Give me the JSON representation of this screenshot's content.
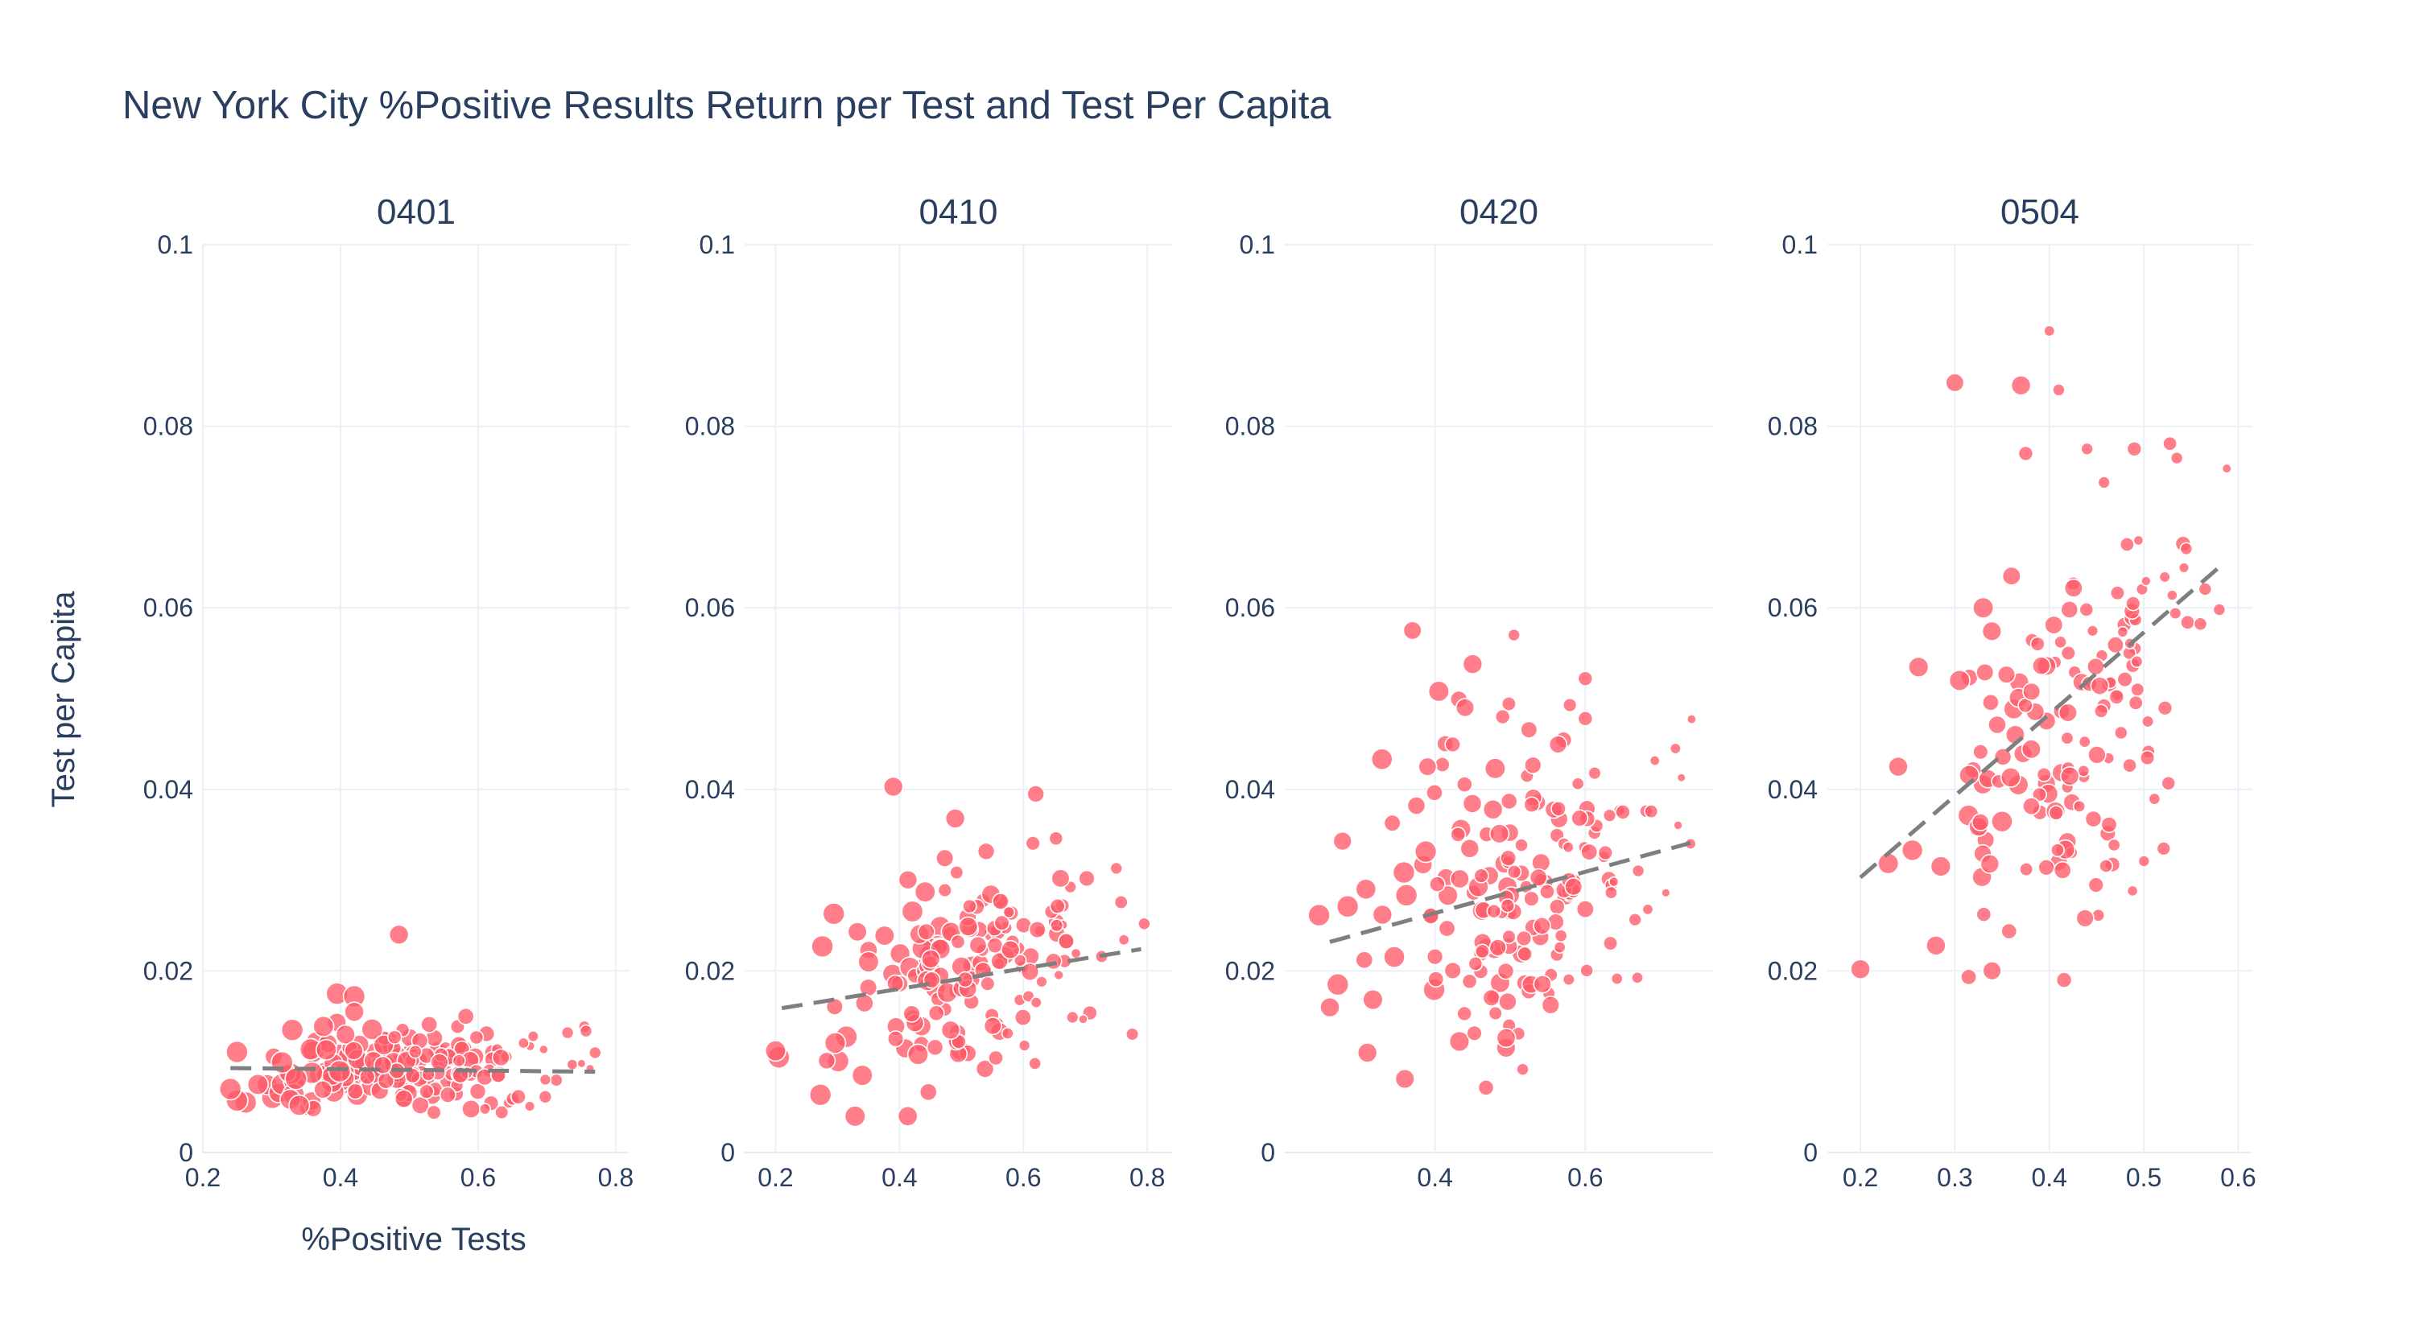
{
  "chart_data": {
    "type": "scatter",
    "title": "New York City %Positive Results Return per Test and Test Per Capita",
    "xlabel": "%Positive Tests",
    "ylabel": "Test per Capita",
    "grid": true,
    "legend": "none",
    "marker_color": "#ff5a68",
    "trend_color": "#7f7f7f",
    "y_range": [
      0,
      0.1
    ],
    "y_ticks": [
      "0",
      "0.02",
      "0.04",
      "0.06",
      "0.08",
      "0.1"
    ],
    "panels": [
      {
        "name": "0401",
        "x_range": [
          0.2,
          0.82
        ],
        "x_ticks": [
          "0.2",
          "0.4",
          "0.6",
          "0.8"
        ],
        "trend": {
          "x": [
            0.24,
            0.77
          ],
          "y": [
            0.0093,
            0.0089
          ]
        },
        "seed": 11,
        "n": 190,
        "cloud": {
          "xc": 0.5,
          "xs": 0.11,
          "yc": 0.0095,
          "ys": 0.0022,
          "slope": 0.0
        },
        "points": [
          {
            "x": 0.485,
            "y": 0.024,
            "s": 16
          },
          {
            "x": 0.395,
            "y": 0.0175,
            "s": 18
          },
          {
            "x": 0.42,
            "y": 0.0172,
            "s": 18
          },
          {
            "x": 0.33,
            "y": 0.0135,
            "s": 18
          },
          {
            "x": 0.24,
            "y": 0.007,
            "s": 18
          },
          {
            "x": 0.28,
            "y": 0.0075,
            "s": 17
          },
          {
            "x": 0.34,
            "y": 0.0052,
            "s": 17
          },
          {
            "x": 0.77,
            "y": 0.011,
            "s": 10
          },
          {
            "x": 0.73,
            "y": 0.0132,
            "s": 10
          },
          {
            "x": 0.68,
            "y": 0.0128,
            "s": 9
          },
          {
            "x": 0.61,
            "y": 0.0048,
            "s": 9
          },
          {
            "x": 0.42,
            "y": 0.0155,
            "s": 16
          }
        ]
      },
      {
        "name": "0410",
        "x_range": [
          0.15,
          0.84
        ],
        "x_ticks": [
          "0.2",
          "0.4",
          "0.6",
          "0.8"
        ],
        "trend": {
          "x": [
            0.21,
            0.79
          ],
          "y": [
            0.0159,
            0.0224
          ]
        },
        "seed": 23,
        "n": 160,
        "cloud": {
          "xc": 0.52,
          "xs": 0.1,
          "yc": 0.0195,
          "ys": 0.0055,
          "slope": 0.02
        },
        "points": [
          {
            "x": 0.2,
            "y": 0.0112,
            "s": 17
          },
          {
            "x": 0.34,
            "y": 0.0085,
            "s": 17
          },
          {
            "x": 0.39,
            "y": 0.0403,
            "s": 16
          },
          {
            "x": 0.62,
            "y": 0.0395,
            "s": 14
          },
          {
            "x": 0.49,
            "y": 0.0368,
            "s": 16
          },
          {
            "x": 0.75,
            "y": 0.0313,
            "s": 10
          },
          {
            "x": 0.795,
            "y": 0.0252,
            "s": 10
          },
          {
            "x": 0.35,
            "y": 0.021,
            "s": 17
          },
          {
            "x": 0.43,
            "y": 0.0108,
            "s": 17
          },
          {
            "x": 0.66,
            "y": 0.0302,
            "s": 15
          }
        ]
      },
      {
        "name": "0420",
        "x_range": [
          0.2,
          0.77
        ],
        "x_ticks": [
          "0.4",
          "0.6"
        ],
        "trend": {
          "x": [
            0.26,
            0.74
          ],
          "y": [
            0.0232,
            0.0341
          ]
        },
        "seed": 37,
        "n": 170,
        "cloud": {
          "xc": 0.52,
          "xs": 0.1,
          "yc": 0.028,
          "ys": 0.009,
          "slope": 0.02
        },
        "points": [
          {
            "x": 0.37,
            "y": 0.0575,
            "s": 15
          },
          {
            "x": 0.505,
            "y": 0.057,
            "s": 10
          },
          {
            "x": 0.45,
            "y": 0.0538,
            "s": 16
          },
          {
            "x": 0.6,
            "y": 0.0522,
            "s": 12
          },
          {
            "x": 0.405,
            "y": 0.0508,
            "s": 17
          },
          {
            "x": 0.44,
            "y": 0.049,
            "s": 15
          },
          {
            "x": 0.49,
            "y": 0.048,
            "s": 12
          },
          {
            "x": 0.6,
            "y": 0.0478,
            "s": 12
          },
          {
            "x": 0.39,
            "y": 0.0425,
            "s": 15
          },
          {
            "x": 0.48,
            "y": 0.0423,
            "s": 17
          },
          {
            "x": 0.26,
            "y": 0.016,
            "s": 16
          },
          {
            "x": 0.31,
            "y": 0.011,
            "s": 16
          },
          {
            "x": 0.33,
            "y": 0.0262,
            "s": 16
          },
          {
            "x": 0.72,
            "y": 0.0445,
            "s": 9
          },
          {
            "x": 0.74,
            "y": 0.034,
            "s": 9
          },
          {
            "x": 0.65,
            "y": 0.0375,
            "s": 12
          }
        ]
      },
      {
        "name": "0504",
        "x_range": [
          0.165,
          0.615
        ],
        "x_ticks": [
          "0.2",
          "0.3",
          "0.4",
          "0.5",
          "0.6"
        ],
        "trend": {
          "x": [
            0.2,
            0.578
          ],
          "y": [
            0.0303,
            0.0643
          ]
        },
        "seed": 53,
        "n": 150,
        "cloud": {
          "xc": 0.42,
          "xs": 0.075,
          "yc": 0.047,
          "ys": 0.011,
          "slope": 0.09
        },
        "points": [
          {
            "x": 0.4,
            "y": 0.0905,
            "s": 9
          },
          {
            "x": 0.3,
            "y": 0.0848,
            "s": 15
          },
          {
            "x": 0.37,
            "y": 0.0845,
            "s": 16
          },
          {
            "x": 0.41,
            "y": 0.084,
            "s": 10
          },
          {
            "x": 0.49,
            "y": 0.0775,
            "s": 12
          },
          {
            "x": 0.535,
            "y": 0.0765,
            "s": 10
          },
          {
            "x": 0.375,
            "y": 0.077,
            "s": 12
          },
          {
            "x": 0.2,
            "y": 0.0202,
            "s": 16
          },
          {
            "x": 0.28,
            "y": 0.0228,
            "s": 16
          },
          {
            "x": 0.305,
            "y": 0.052,
            "s": 17
          },
          {
            "x": 0.33,
            "y": 0.06,
            "s": 17
          },
          {
            "x": 0.36,
            "y": 0.0635,
            "s": 15
          },
          {
            "x": 0.58,
            "y": 0.0598,
            "s": 10
          },
          {
            "x": 0.545,
            "y": 0.0665,
            "s": 10
          },
          {
            "x": 0.44,
            "y": 0.0775,
            "s": 10
          },
          {
            "x": 0.24,
            "y": 0.0425,
            "s": 16
          }
        ]
      }
    ]
  }
}
